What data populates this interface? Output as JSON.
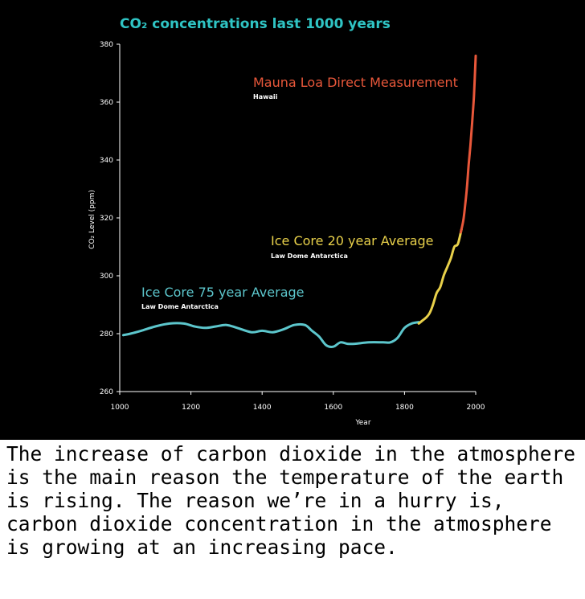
{
  "caption": "The increase of carbon dioxide in the atmosphere is the main reason the temperature of the earth is rising. The reason we’re in a hurry is, carbon dioxide concentration in the atmosphere is growing at an increasing pace.",
  "colors": {
    "background": "#000000",
    "title": "#2fc4c4",
    "ice_core_75": "#5cc6cc",
    "ice_core_20": "#e8d04a",
    "mauna_loa": "#e8573a",
    "axis": "#ffffff"
  },
  "chart_data": {
    "type": "line",
    "title": "CO₂ concentrations last 1000 years",
    "xlabel": "Year",
    "ylabel": "CO₂ Level (ppm)",
    "xlim": [
      1000,
      2000
    ],
    "ylim": [
      260,
      380
    ],
    "x_ticks": [
      "1000",
      "1200",
      "1400",
      "1600",
      "1800",
      "2000"
    ],
    "y_ticks": [
      "260",
      "280",
      "300",
      "320",
      "340",
      "360",
      "380"
    ],
    "grid": false,
    "series": [
      {
        "name": "Ice Core 75 year Average",
        "sublabel": "Law Dome Antarctica",
        "color": "#5cc6cc",
        "x": [
          1010,
          1030,
          1060,
          1100,
          1140,
          1180,
          1210,
          1240,
          1270,
          1300,
          1330,
          1370,
          1400,
          1430,
          1460,
          1490,
          1520,
          1540,
          1560,
          1580,
          1600,
          1620,
          1640,
          1660,
          1700,
          1740,
          1760,
          1780,
          1800,
          1820,
          1840
        ],
        "y": [
          279.5,
          280,
          281,
          282.5,
          283.5,
          283.5,
          282.5,
          282,
          282.5,
          283,
          282,
          280.5,
          281,
          280.5,
          281.5,
          283,
          283,
          281,
          279,
          276,
          275.5,
          277,
          276.5,
          276.5,
          277,
          277,
          277,
          278.5,
          282,
          283.5,
          284
        ]
      },
      {
        "name": "Ice Core 20 year Average",
        "sublabel": "Law Dome Antarctica",
        "color": "#e8d04a",
        "x": [
          1840,
          1850,
          1860,
          1870,
          1880,
          1890,
          1900,
          1910,
          1920,
          1930,
          1940,
          1950,
          1960
        ],
        "y": [
          283.5,
          284.5,
          285.5,
          287,
          290,
          294,
          296,
          300,
          303,
          306,
          310,
          311,
          316
        ]
      },
      {
        "name": "Mauna Loa Direct Measurement",
        "sublabel": "Hawaii",
        "color": "#e8573a",
        "x": [
          1958,
          1965,
          1970,
          1975,
          1980,
          1985,
          1990,
          1995,
          2000
        ],
        "y": [
          315,
          319,
          324,
          330,
          338,
          345,
          353,
          362,
          376
        ]
      }
    ]
  }
}
